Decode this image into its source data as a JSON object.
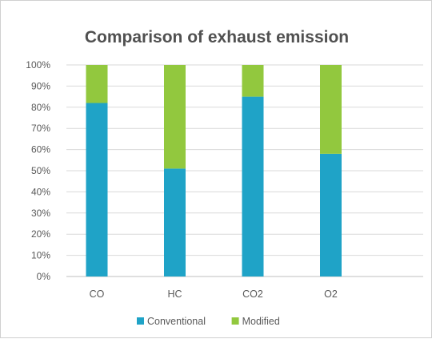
{
  "chart_data": {
    "type": "bar",
    "stacked": true,
    "percent_stacked": true,
    "title": "Comparison of exhaust emission",
    "categories": [
      "CO",
      "HC",
      "CO2",
      "O2"
    ],
    "series": [
      {
        "name": "Conventional",
        "color": "#1fa3c7",
        "values": [
          82,
          51,
          85,
          58
        ]
      },
      {
        "name": "Modified",
        "color": "#92c83e",
        "values": [
          18,
          49,
          15,
          42
        ]
      }
    ],
    "y_ticks": [
      "0%",
      "10%",
      "20%",
      "30%",
      "40%",
      "50%",
      "60%",
      "70%",
      "80%",
      "90%",
      "100%"
    ],
    "ylim": [
      0,
      100
    ],
    "grid": true,
    "legend_position": "bottom"
  }
}
